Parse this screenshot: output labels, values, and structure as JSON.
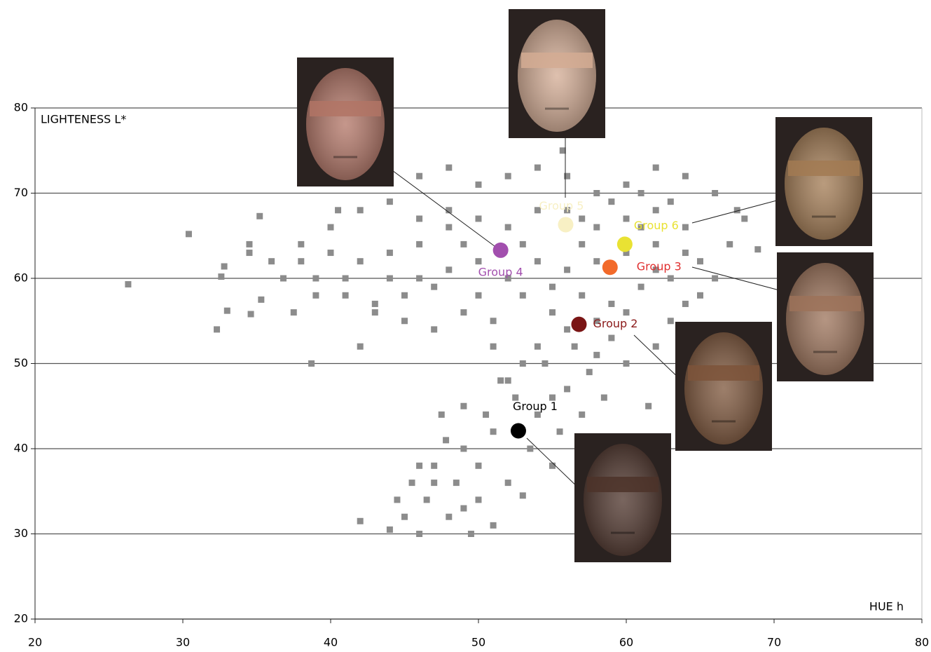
{
  "chart_data": {
    "type": "scatter",
    "y_label": "LIGHTENESS L*",
    "x_label": "HUE h",
    "xlim": [
      20,
      80
    ],
    "xticks": [
      20,
      30,
      40,
      50,
      60,
      70,
      80
    ],
    "ylim": [
      20,
      80
    ],
    "yticks": [
      20,
      30,
      40,
      50,
      60,
      70,
      80
    ],
    "grid": true,
    "points": {
      "color": "#8c8c8c",
      "x": [
        26.3,
        30.4,
        32.3,
        32.6,
        32.8,
        33,
        34.5,
        34.5,
        34.6,
        35.2,
        35.3,
        36,
        36.8,
        37.5,
        38.7,
        38,
        39,
        40,
        40.5,
        41,
        42,
        42,
        43,
        44,
        44.5,
        45,
        45.5,
        46,
        46.5,
        47,
        47.5,
        47.8,
        48,
        48.5,
        49,
        49.5,
        50,
        50,
        50.5,
        51,
        51.5,
        52,
        52.5,
        53,
        53.5,
        54,
        54.5,
        55,
        55.5,
        56,
        56.5,
        57,
        57.5,
        58,
        58.5,
        59,
        60,
        61.5,
        62,
        63,
        64,
        65,
        66,
        67,
        68,
        68.9,
        67.5,
        66,
        64,
        62,
        60,
        58,
        56,
        55.7,
        54,
        52,
        50,
        48,
        46,
        44,
        42,
        40,
        38,
        39,
        41,
        43,
        45,
        47,
        49,
        51,
        53,
        55,
        57,
        59,
        61,
        63,
        65,
        64,
        62,
        60,
        58,
        56,
        54,
        52,
        50,
        48,
        46,
        44,
        42,
        44,
        46,
        48,
        50,
        52,
        54,
        56,
        58,
        60,
        62,
        64,
        63,
        61,
        57,
        53,
        49,
        47,
        45,
        50,
        55,
        51,
        53,
        55,
        52,
        54,
        56,
        49,
        51,
        47,
        49,
        46,
        58,
        60,
        62,
        48,
        46,
        57,
        59,
        61
      ],
      "y": [
        59.3,
        65.2,
        54,
        60.2,
        61.4,
        56.2,
        64,
        63,
        55.8,
        67.3,
        57.5,
        62,
        60,
        56,
        50,
        64,
        58,
        63,
        68,
        60,
        52,
        31.5,
        56,
        30.5,
        34,
        32,
        36,
        30,
        34,
        38,
        44,
        41,
        32,
        36,
        40,
        30,
        34,
        38,
        44,
        31,
        48,
        36,
        46,
        34.5,
        40,
        44,
        50,
        38,
        42,
        47,
        52,
        44,
        49,
        51,
        46,
        53,
        50,
        45,
        52,
        55,
        57,
        58,
        60,
        64,
        67,
        63.4,
        68,
        70,
        72,
        73,
        71,
        70,
        72,
        75,
        73,
        72,
        71,
        73,
        72,
        69,
        68,
        66,
        62,
        60,
        58,
        57,
        55,
        54,
        56,
        55,
        58,
        56,
        58,
        57,
        59,
        60,
        62,
        66,
        68,
        67,
        66,
        68,
        68,
        66,
        67,
        66,
        64,
        63,
        62,
        60,
        60,
        61,
        62,
        60,
        62,
        61,
        62,
        63,
        64,
        63,
        69,
        70,
        64,
        64,
        64,
        59,
        58,
        58,
        59,
        52,
        50,
        46,
        48,
        52,
        54,
        45,
        42,
        36,
        33,
        38,
        55,
        56,
        61,
        68,
        67,
        67,
        69,
        66
      ]
    },
    "groups": {
      "labels": [
        "Group 1",
        "Group 2",
        "Group 3",
        "Group 4",
        "Group 5",
        "Group 6"
      ],
      "x": [
        52.7,
        56.8,
        58.9,
        51.5,
        55.9,
        59.9
      ],
      "y": [
        42.1,
        54.6,
        61.3,
        63.3,
        66.3,
        64.0
      ],
      "colors": [
        "#000000",
        "#7a1515",
        "#f26a2a",
        "#a24fae",
        "#f8f0c4",
        "#e9e233"
      ],
      "label_colors": [
        "#000000",
        "#8b1a1a",
        "#e03030",
        "#a24fae",
        "#f8f0c4",
        "#e9e233"
      ]
    }
  }
}
